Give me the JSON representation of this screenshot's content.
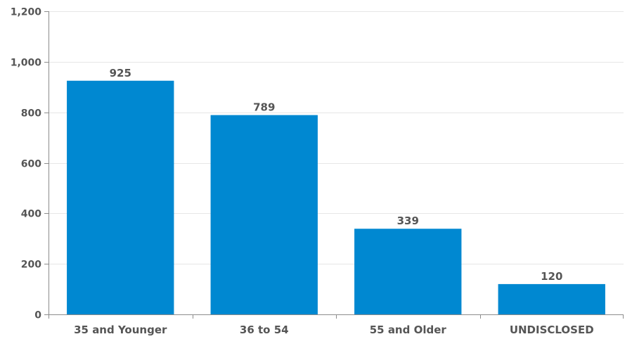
{
  "chart_data": {
    "type": "bar",
    "categories": [
      "35 and Younger",
      "36 to 54",
      "55 and Older",
      "UNDISCLOSED"
    ],
    "values": [
      925,
      789,
      339,
      120
    ],
    "data_labels": [
      "925",
      "789",
      "339",
      "120"
    ],
    "y_ticks": [
      0,
      200,
      400,
      600,
      800,
      1000,
      1200
    ],
    "y_tick_labels": [
      "0",
      "200",
      "400",
      "600",
      "800",
      "1,000",
      "1,200"
    ],
    "ylim": [
      0,
      1200
    ],
    "title": "",
    "xlabel": "",
    "ylabel": "",
    "grid": true,
    "legend": "none",
    "colors": {
      "bar": "#0088d1",
      "grid": "#e6e6e6",
      "axis": "#8c8c8c",
      "text": "#555555"
    }
  }
}
